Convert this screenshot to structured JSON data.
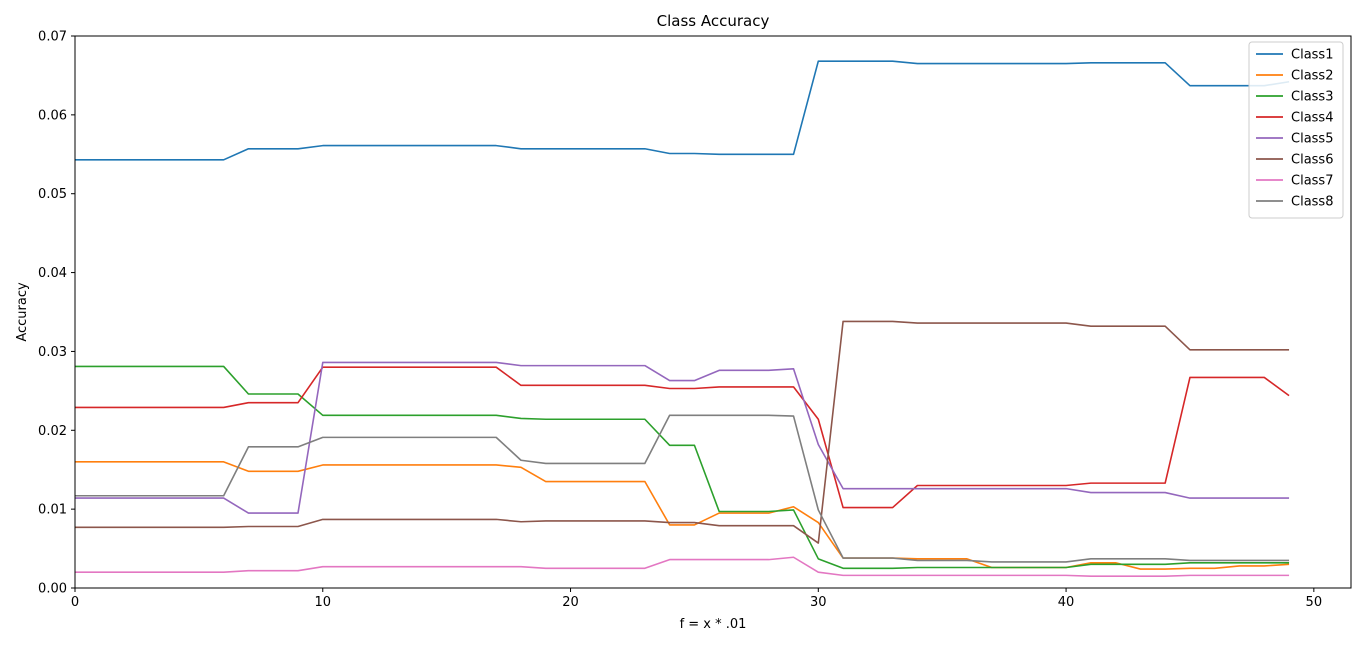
{
  "chart_data": {
    "type": "line",
    "title": "Class Accuracy",
    "xlabel": "f = x * .01",
    "ylabel": "Accuracy",
    "xlim": [
      0,
      51.5
    ],
    "ylim": [
      0,
      0.07
    ],
    "xticks": [
      "0",
      "10",
      "20",
      "30",
      "40",
      "50"
    ],
    "yticks": [
      "0.00",
      "0.01",
      "0.02",
      "0.03",
      "0.04",
      "0.05",
      "0.06",
      "0.07"
    ],
    "grid": false,
    "legend_position": "top-right",
    "x": [
      0,
      1,
      2,
      3,
      4,
      5,
      6,
      7,
      8,
      9,
      10,
      11,
      12,
      13,
      14,
      15,
      16,
      17,
      18,
      19,
      20,
      21,
      22,
      23,
      24,
      25,
      26,
      27,
      28,
      29,
      30,
      31,
      32,
      33,
      34,
      35,
      36,
      37,
      38,
      39,
      40,
      41,
      42,
      43,
      44,
      45,
      46,
      47,
      48,
      49
    ],
    "series": [
      {
        "name": "Class1",
        "color": "#1f77b4",
        "values": [
          0.0543,
          0.0543,
          0.0543,
          0.0543,
          0.0543,
          0.0543,
          0.0543,
          0.0557,
          0.0557,
          0.0557,
          0.0561,
          0.0561,
          0.0561,
          0.0561,
          0.0561,
          0.0561,
          0.0561,
          0.0561,
          0.0557,
          0.0557,
          0.0557,
          0.0557,
          0.0557,
          0.0557,
          0.0551,
          0.0551,
          0.055,
          0.055,
          0.055,
          0.055,
          0.0668,
          0.0668,
          0.0668,
          0.0668,
          0.0665,
          0.0665,
          0.0665,
          0.0665,
          0.0665,
          0.0665,
          0.0665,
          0.0666,
          0.0666,
          0.0666,
          0.0666,
          0.0637,
          0.0637,
          0.0637,
          0.0637,
          0.0642
        ]
      },
      {
        "name": "Class2",
        "color": "#ff7f0e",
        "values": [
          0.016,
          0.016,
          0.016,
          0.016,
          0.016,
          0.016,
          0.016,
          0.0148,
          0.0148,
          0.0148,
          0.0156,
          0.0156,
          0.0156,
          0.0156,
          0.0156,
          0.0156,
          0.0156,
          0.0156,
          0.0153,
          0.0135,
          0.0135,
          0.0135,
          0.0135,
          0.0135,
          0.008,
          0.008,
          0.0095,
          0.0095,
          0.0095,
          0.0103,
          0.0083,
          0.0038,
          0.0038,
          0.0038,
          0.0037,
          0.0037,
          0.0037,
          0.0026,
          0.0026,
          0.0026,
          0.0026,
          0.0032,
          0.0032,
          0.0024,
          0.0024,
          0.0025,
          0.0025,
          0.0028,
          0.0028,
          0.003
        ]
      },
      {
        "name": "Class3",
        "color": "#2ca02c",
        "values": [
          0.0281,
          0.0281,
          0.0281,
          0.0281,
          0.0281,
          0.0281,
          0.0281,
          0.0246,
          0.0246,
          0.0246,
          0.0219,
          0.0219,
          0.0219,
          0.0219,
          0.0219,
          0.0219,
          0.0219,
          0.0219,
          0.0215,
          0.0214,
          0.0214,
          0.0214,
          0.0214,
          0.0214,
          0.0181,
          0.0181,
          0.0097,
          0.0097,
          0.0097,
          0.0099,
          0.0037,
          0.0025,
          0.0025,
          0.0025,
          0.0026,
          0.0026,
          0.0026,
          0.0026,
          0.0026,
          0.0026,
          0.0026,
          0.003,
          0.003,
          0.003,
          0.003,
          0.0032,
          0.0032,
          0.0032,
          0.0032,
          0.0032
        ]
      },
      {
        "name": "Class4",
        "color": "#d62728",
        "values": [
          0.0229,
          0.0229,
          0.0229,
          0.0229,
          0.0229,
          0.0229,
          0.0229,
          0.0235,
          0.0235,
          0.0235,
          0.028,
          0.028,
          0.028,
          0.028,
          0.028,
          0.028,
          0.028,
          0.028,
          0.0257,
          0.0257,
          0.0257,
          0.0257,
          0.0257,
          0.0257,
          0.0253,
          0.0253,
          0.0255,
          0.0255,
          0.0255,
          0.0255,
          0.0214,
          0.0102,
          0.0102,
          0.0102,
          0.013,
          0.013,
          0.013,
          0.013,
          0.013,
          0.013,
          0.013,
          0.0133,
          0.0133,
          0.0133,
          0.0133,
          0.0267,
          0.0267,
          0.0267,
          0.0267,
          0.0244
        ]
      },
      {
        "name": "Class5",
        "color": "#9467bd",
        "values": [
          0.0114,
          0.0114,
          0.0114,
          0.0114,
          0.0114,
          0.0114,
          0.0114,
          0.0095,
          0.0095,
          0.0095,
          0.0286,
          0.0286,
          0.0286,
          0.0286,
          0.0286,
          0.0286,
          0.0286,
          0.0286,
          0.0282,
          0.0282,
          0.0282,
          0.0282,
          0.0282,
          0.0282,
          0.0263,
          0.0263,
          0.0276,
          0.0276,
          0.0276,
          0.0278,
          0.0182,
          0.0126,
          0.0126,
          0.0126,
          0.0126,
          0.0126,
          0.0126,
          0.0126,
          0.0126,
          0.0126,
          0.0126,
          0.0121,
          0.0121,
          0.0121,
          0.0121,
          0.0114,
          0.0114,
          0.0114,
          0.0114,
          0.0114
        ]
      },
      {
        "name": "Class6",
        "color": "#8c564b",
        "values": [
          0.0077,
          0.0077,
          0.0077,
          0.0077,
          0.0077,
          0.0077,
          0.0077,
          0.0078,
          0.0078,
          0.0078,
          0.0087,
          0.0087,
          0.0087,
          0.0087,
          0.0087,
          0.0087,
          0.0087,
          0.0087,
          0.0084,
          0.0085,
          0.0085,
          0.0085,
          0.0085,
          0.0085,
          0.0083,
          0.0083,
          0.0079,
          0.0079,
          0.0079,
          0.0079,
          0.0057,
          0.0338,
          0.0338,
          0.0338,
          0.0336,
          0.0336,
          0.0336,
          0.0336,
          0.0336,
          0.0336,
          0.0336,
          0.0332,
          0.0332,
          0.0332,
          0.0332,
          0.0302,
          0.0302,
          0.0302,
          0.0302,
          0.0302
        ]
      },
      {
        "name": "Class7",
        "color": "#e377c2",
        "values": [
          0.002,
          0.002,
          0.002,
          0.002,
          0.002,
          0.002,
          0.002,
          0.0022,
          0.0022,
          0.0022,
          0.0027,
          0.0027,
          0.0027,
          0.0027,
          0.0027,
          0.0027,
          0.0027,
          0.0027,
          0.0027,
          0.0025,
          0.0025,
          0.0025,
          0.0025,
          0.0025,
          0.0036,
          0.0036,
          0.0036,
          0.0036,
          0.0036,
          0.0039,
          0.002,
          0.0016,
          0.0016,
          0.0016,
          0.0016,
          0.0016,
          0.0016,
          0.0016,
          0.0016,
          0.0016,
          0.0016,
          0.0015,
          0.0015,
          0.0015,
          0.0015,
          0.0016,
          0.0016,
          0.0016,
          0.0016,
          0.0016
        ]
      },
      {
        "name": "Class8",
        "color": "#7f7f7f",
        "values": [
          0.0117,
          0.0117,
          0.0117,
          0.0117,
          0.0117,
          0.0117,
          0.0117,
          0.0179,
          0.0179,
          0.0179,
          0.0191,
          0.0191,
          0.0191,
          0.0191,
          0.0191,
          0.0191,
          0.0191,
          0.0191,
          0.0162,
          0.0158,
          0.0158,
          0.0158,
          0.0158,
          0.0158,
          0.0219,
          0.0219,
          0.0219,
          0.0219,
          0.0219,
          0.0218,
          0.0099,
          0.0038,
          0.0038,
          0.0038,
          0.0035,
          0.0035,
          0.0035,
          0.0033,
          0.0033,
          0.0033,
          0.0033,
          0.0037,
          0.0037,
          0.0037,
          0.0037,
          0.0035,
          0.0035,
          0.0035,
          0.0035,
          0.0035
        ]
      }
    ]
  }
}
